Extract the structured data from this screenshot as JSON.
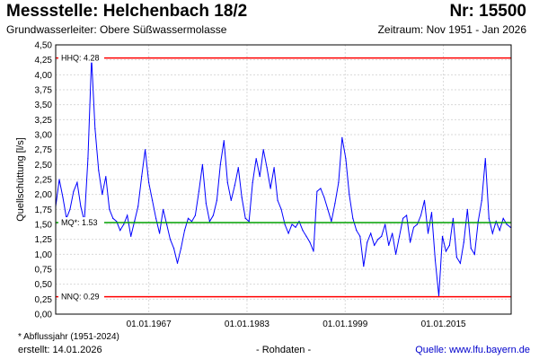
{
  "header": {
    "title": "Messstelle: Helchenbach 18/2",
    "number": "Nr: 15500",
    "aquifer": "Grundwasserleiter:  Obere Süßwassermolasse",
    "period": "Zeitraum: Nov 1951 - Jan 2026"
  },
  "footer": {
    "footnote": "* Abflussjahr (1951-2024)",
    "created": "erstellt:  14.01.2026",
    "raw": "- Rohdaten -",
    "source": "Quelle: www.lfu.bayern.de"
  },
  "colors": {
    "series": "#0000ff",
    "hhq": "#ff0000",
    "mq": "#00a000",
    "nnq": "#ff0000",
    "grid": "#d9d9d9"
  },
  "chart_data": {
    "type": "line",
    "title": "Messstelle: Helchenbach 18/2",
    "xlabel": "",
    "ylabel": "Quellschüttung [l/s]",
    "xlim": [
      "1951-11-01",
      "2026-01-14"
    ],
    "ylim": [
      0,
      4.5
    ],
    "x_ticks": [
      "01.01.1967",
      "01.01.1983",
      "01.01.1999",
      "01.01.2015"
    ],
    "y_ticks": [
      "0,00",
      "0,25",
      "0,50",
      "0,75",
      "1,00",
      "1,25",
      "1,50",
      "1,75",
      "2,00",
      "2,25",
      "2,50",
      "2,75",
      "3,00",
      "3,25",
      "3,50",
      "3,75",
      "4,00",
      "4,25",
      "4,50"
    ],
    "grid": true,
    "reference_lines": [
      {
        "label": "HHQ: 4.28",
        "value": 4.28
      },
      {
        "label": "MQ*: 1.53",
        "value": 1.53
      },
      {
        "label": "NNQ: 0.29",
        "value": 0.29
      }
    ],
    "series": [
      {
        "x": [
          "1951-11",
          "1952-06",
          "1953-01",
          "1953-08",
          "1954-03",
          "1954-10",
          "1955-05",
          "1955-12",
          "1956-07",
          "1957-02",
          "1957-09",
          "1958-04",
          "1958-11",
          "1959-06",
          "1960-01",
          "1960-08",
          "1961-03",
          "1961-10",
          "1962-05",
          "1962-12",
          "1963-07",
          "1964-02",
          "1964-09",
          "1965-04",
          "1965-11",
          "1966-06",
          "1967-01",
          "1967-08",
          "1968-03",
          "1968-10",
          "1969-05",
          "1969-12",
          "1970-07",
          "1971-02",
          "1971-09",
          "1972-04",
          "1972-11",
          "1973-06",
          "1974-01",
          "1974-08",
          "1975-03",
          "1975-10",
          "1976-05",
          "1976-12",
          "1977-07",
          "1978-02",
          "1978-09",
          "1979-04",
          "1979-11",
          "1980-06",
          "1981-01",
          "1981-08",
          "1982-03",
          "1982-10",
          "1983-05",
          "1983-12",
          "1984-07",
          "1985-02",
          "1985-09",
          "1986-04",
          "1986-11",
          "1987-06",
          "1988-01",
          "1988-08",
          "1989-03",
          "1989-10",
          "1990-05",
          "1990-12",
          "1991-07",
          "1992-02",
          "1992-09",
          "1993-04",
          "1993-11",
          "1994-06",
          "1995-01",
          "1995-08",
          "1996-03",
          "1996-10",
          "1997-05",
          "1997-12",
          "1998-07",
          "1999-02",
          "1999-09",
          "2000-04",
          "2000-11",
          "2001-06",
          "2002-01",
          "2002-08",
          "2003-03",
          "2003-10",
          "2004-05",
          "2004-12",
          "2005-07",
          "2006-02",
          "2006-09",
          "2007-04",
          "2007-11",
          "2008-06",
          "2009-01",
          "2009-08",
          "2010-03",
          "2010-10",
          "2011-05",
          "2011-12",
          "2012-07",
          "2013-02",
          "2013-09",
          "2014-04",
          "2014-11",
          "2015-06",
          "2016-01",
          "2016-08",
          "2017-03",
          "2017-10",
          "2018-05",
          "2018-12",
          "2019-07",
          "2020-02",
          "2020-09",
          "2021-04",
          "2021-11",
          "2022-06",
          "2023-01",
          "2023-08",
          "2024-03",
          "2024-10",
          "2025-05",
          "2025-12"
        ],
        "y": [
          1.8,
          2.25,
          1.95,
          1.6,
          1.75,
          2.05,
          2.2,
          1.8,
          1.55,
          2.6,
          4.28,
          3.1,
          2.4,
          2.0,
          2.3,
          1.75,
          1.6,
          1.55,
          1.4,
          1.5,
          1.65,
          1.3,
          1.55,
          1.8,
          2.3,
          2.75,
          2.2,
          1.9,
          1.6,
          1.35,
          1.75,
          1.5,
          1.25,
          1.1,
          0.85,
          1.1,
          1.4,
          1.6,
          1.55,
          1.65,
          2.05,
          2.5,
          1.85,
          1.55,
          1.65,
          1.9,
          2.5,
          2.9,
          2.2,
          1.9,
          2.15,
          2.45,
          1.95,
          1.6,
          1.55,
          2.2,
          2.6,
          2.3,
          2.75,
          2.45,
          2.1,
          2.45,
          1.9,
          1.75,
          1.5,
          1.35,
          1.5,
          1.45,
          1.55,
          1.4,
          1.3,
          1.2,
          1.05,
          2.05,
          2.1,
          1.95,
          1.75,
          1.55,
          1.85,
          2.2,
          2.95,
          2.6,
          2.0,
          1.6,
          1.4,
          1.3,
          0.8,
          1.2,
          1.35,
          1.15,
          1.25,
          1.3,
          1.5,
          1.15,
          1.35,
          1.0,
          1.3,
          1.6,
          1.65,
          1.2,
          1.45,
          1.5,
          1.65,
          1.9,
          1.35,
          1.7,
          0.9,
          0.3,
          1.3,
          1.05,
          1.15,
          1.6,
          0.95,
          0.85,
          1.2,
          1.75,
          1.1,
          1.0,
          1.55,
          1.9,
          2.6,
          1.6,
          1.35,
          1.55,
          1.4,
          1.6,
          1.5,
          1.45
        ]
      }
    ]
  }
}
